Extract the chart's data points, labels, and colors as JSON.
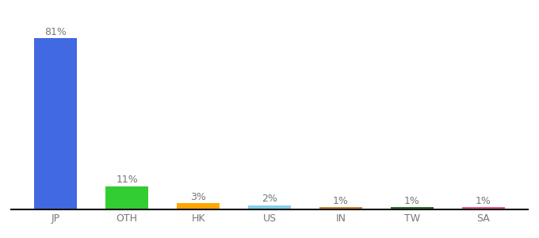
{
  "categories": [
    "JP",
    "OTH",
    "HK",
    "US",
    "IN",
    "TW",
    "SA"
  ],
  "values": [
    81,
    11,
    3,
    2,
    1,
    1,
    1
  ],
  "bar_colors": [
    "#4169e1",
    "#32cd32",
    "#ffa500",
    "#87ceeb",
    "#cd7f32",
    "#2e6b2e",
    "#e75480"
  ],
  "label_fontsize": 9,
  "tick_fontsize": 9,
  "ylim": [
    0,
    90
  ],
  "background_color": "#ffffff"
}
